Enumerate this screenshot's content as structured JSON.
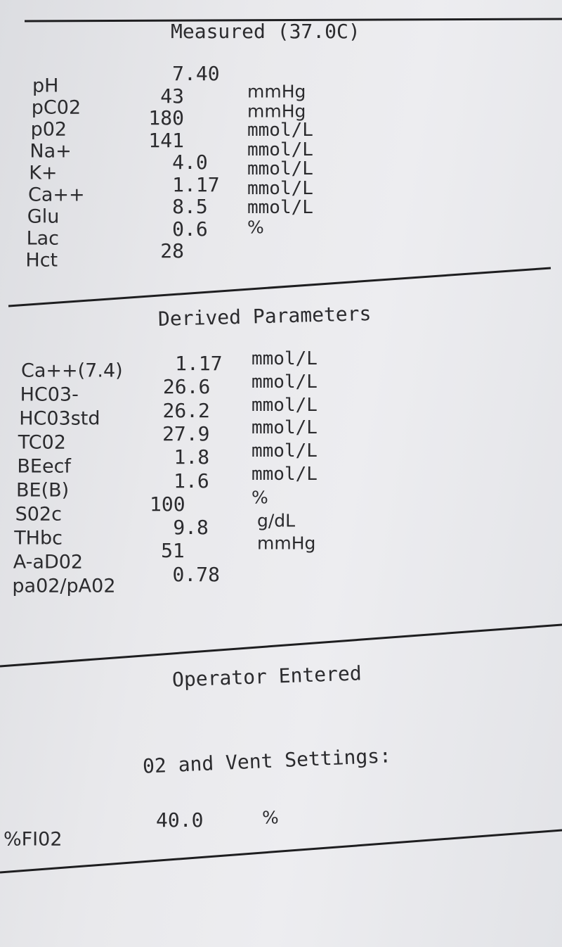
{
  "measured": {
    "title": "Measured (37.0C)",
    "rows": [
      {
        "label": "pH",
        "value": "7.40",
        "unit": ""
      },
      {
        "label": "pC02",
        "value": "43",
        "unit": "mmHg"
      },
      {
        "label": "p02",
        "value": "180",
        "unit": "mmHg"
      },
      {
        "label": "Na+",
        "value": "141",
        "unit": "mmol/L"
      },
      {
        "label": "K+",
        "value": "4.0",
        "unit": "mmol/L"
      },
      {
        "label": "Ca++",
        "value": "1.17",
        "unit": "mmol/L"
      },
      {
        "label": "Glu",
        "value": "8.5",
        "unit": "mmol/L"
      },
      {
        "label": "Lac",
        "value": "0.6",
        "unit": "mmol/L"
      },
      {
        "label": "Hct",
        "value": "28",
        "unit": "%"
      }
    ]
  },
  "derived": {
    "title": "Derived Parameters",
    "rows": [
      {
        "label": "Ca++(7.4)",
        "value": "1.17",
        "unit": "mmol/L"
      },
      {
        "label": "HC03-",
        "value": "26.6",
        "unit": "mmol/L"
      },
      {
        "label": "HC03std",
        "value": "26.2",
        "unit": "mmol/L"
      },
      {
        "label": "TC02",
        "value": "27.9",
        "unit": "mmol/L"
      },
      {
        "label": "BEecf",
        "value": "1.8",
        "unit": "mmol/L"
      },
      {
        "label": "BE(B)",
        "value": "1.6",
        "unit": "mmol/L"
      },
      {
        "label": "S02c",
        "value": "100",
        "unit": "%"
      },
      {
        "label": "THbc",
        "value": "9.8",
        "unit": "g/dL"
      },
      {
        "label": "A-aD02",
        "value": "51",
        "unit": "mmHg"
      },
      {
        "label": "pa02/pA02",
        "value": "0.78",
        "unit": ""
      }
    ]
  },
  "operator": {
    "title": "Operator Entered",
    "subtitle": "02 and Vent Settings:",
    "fio2": {
      "label": "%FI02",
      "value": "40.0",
      "unit": "%"
    }
  }
}
